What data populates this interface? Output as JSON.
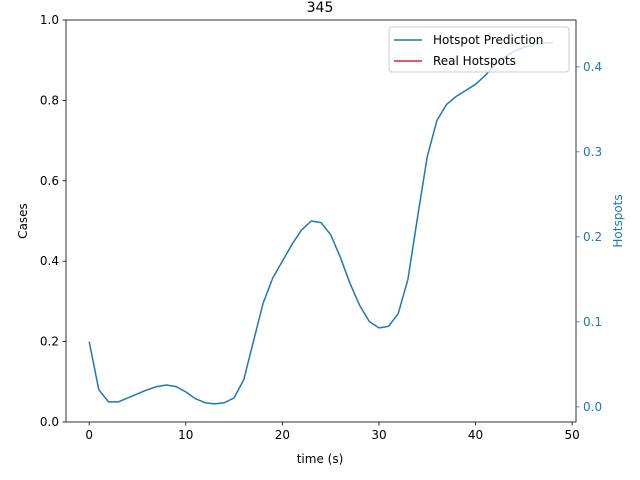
{
  "chart_data": {
    "type": "line",
    "title": "345",
    "xlabel": "time (s)",
    "ylabel": "Cases",
    "ylabel_right": "Hotspots",
    "xlim": [
      -2.4,
      50.4
    ],
    "ylim": [
      0,
      1
    ],
    "ylim_right": [
      -0.0178,
      0.4551
    ],
    "x_ticks": [
      0,
      10,
      20,
      30,
      40,
      50
    ],
    "x_tick_labels": [
      "0",
      "10",
      "20",
      "30",
      "40",
      "50"
    ],
    "y_ticks": [
      0.0,
      0.2,
      0.4,
      0.6,
      0.8,
      1.0
    ],
    "y_tick_labels": [
      "0.0",
      "0.2",
      "0.4",
      "0.6",
      "0.8",
      "1.0"
    ],
    "y_ticks_right": [
      0.0,
      0.1,
      0.2,
      0.3,
      0.4
    ],
    "y_tick_labels_right": [
      "0.0",
      "0.1",
      "0.2",
      "0.3",
      "0.4"
    ],
    "grid": false,
    "legend_position": "top-right",
    "series": [
      {
        "name": "Hotspot Prediction",
        "axis": "left",
        "color": "#1f77b4",
        "x": [
          0,
          1,
          2,
          3,
          4,
          5,
          6,
          7,
          8,
          9,
          10,
          11,
          12,
          13,
          14,
          15,
          16,
          17,
          18,
          19,
          20,
          21,
          22,
          23,
          24,
          25,
          26,
          27,
          28,
          29,
          30,
          31,
          32,
          33,
          34,
          35,
          36,
          37,
          38,
          39,
          40,
          41,
          42,
          43,
          44,
          45,
          46,
          47,
          48
        ],
        "values": [
          0.2,
          0.08,
          0.05,
          0.05,
          0.06,
          0.07,
          0.08,
          0.088,
          0.092,
          0.088,
          0.075,
          0.058,
          0.048,
          0.045,
          0.048,
          0.06,
          0.105,
          0.2,
          0.295,
          0.358,
          0.4,
          0.442,
          0.478,
          0.5,
          0.496,
          0.466,
          0.41,
          0.345,
          0.29,
          0.25,
          0.234,
          0.238,
          0.27,
          0.355,
          0.51,
          0.66,
          0.75,
          0.79,
          0.81,
          0.825,
          0.84,
          0.862,
          0.888,
          0.908,
          0.922,
          0.932,
          0.938,
          0.942,
          0.944
        ]
      },
      {
        "name": "Real Hotspots",
        "axis": "right",
        "color": "#d62728",
        "x": [],
        "values": []
      }
    ]
  }
}
